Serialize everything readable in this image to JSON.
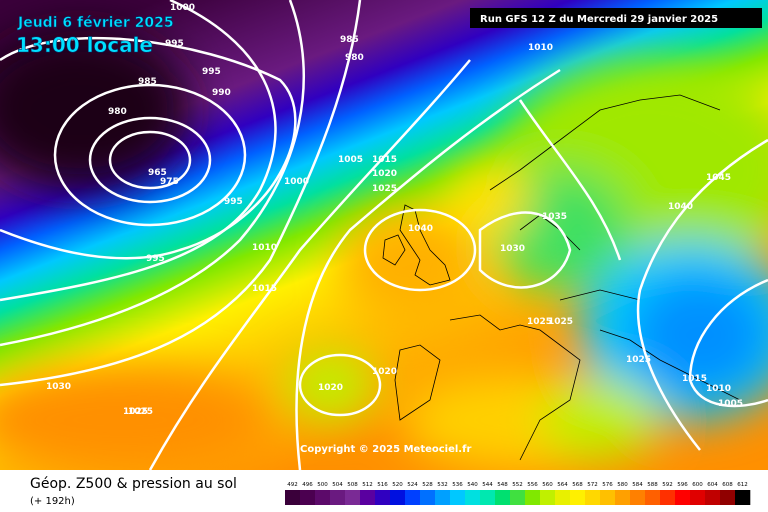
{
  "header": {
    "date": "Jeudi 6 février 2025",
    "time": "13:00 locale",
    "run": "Run GFS 12 Z du Mercredi 29 janvier 2025"
  },
  "copyright": "Copyright © 2025 Meteociel.fr",
  "footer": {
    "title": "Géop. Z500 & pression au sol",
    "lead": "(+ 192h)"
  },
  "isobar_labels": [
    1000,
    995,
    985,
    980,
    985,
    995,
    990,
    980,
    965,
    975,
    995,
    1005,
    1015,
    1020,
    1025,
    1000,
    1010,
    995,
    1010,
    1015,
    1040,
    1035,
    1030,
    1040,
    1045,
    1025,
    1025,
    1025,
    1020,
    1015,
    1010,
    1005,
    1020,
    1025,
    1030,
    1025
  ],
  "legend_labels": [
    492,
    496,
    500,
    504,
    508,
    512,
    516,
    520,
    524,
    528,
    532,
    536,
    540,
    544,
    548,
    552,
    556,
    560,
    564,
    568,
    572,
    576,
    580,
    584,
    588,
    592,
    596,
    600,
    604,
    608,
    612
  ]
}
